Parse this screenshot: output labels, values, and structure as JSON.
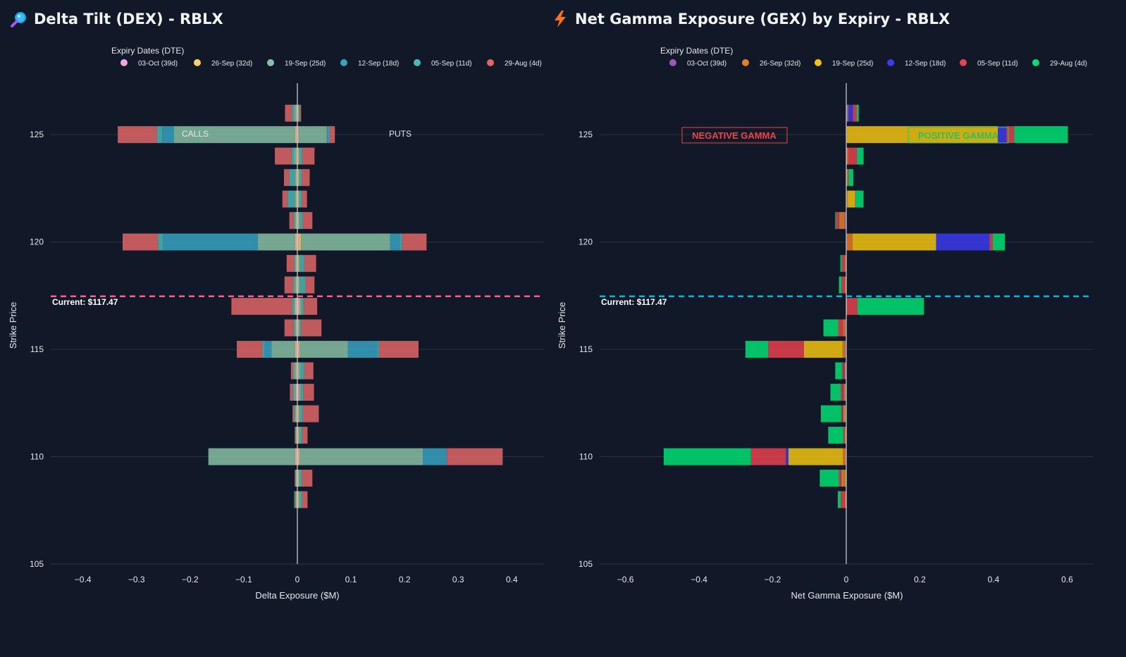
{
  "dex": {
    "title": "Delta Tilt (DEX) - RBLX",
    "legend_title": "Expiry Dates (DTE)",
    "xlabel": "Delta Exposure ($M)",
    "ylabel": "Strike Price",
    "current_label": "Current: $117.47",
    "calls_label": "CALLS",
    "puts_label": "PUTS",
    "current_line_color": "#f06292"
  },
  "gex": {
    "title": "Net Gamma Exposure (GEX) by Expiry - RBLX",
    "legend_title": "Expiry Dates (DTE)",
    "xlabel": "Net Gamma Exposure ($M)",
    "ylabel": "Strike Price",
    "current_label": "Current: $117.47",
    "negative_label": "NEGATIVE GAMMA",
    "positive_label": "POSITIVE GAMMA",
    "negative_color": "#ef4444",
    "positive_color": "#22c55e",
    "current_line_color": "#06b6d4"
  },
  "chart_data": [
    {
      "type": "bar",
      "orientation": "horizontal",
      "stacked": true,
      "title": "Delta Tilt (DEX) - RBLX",
      "xlabel": "Delta Exposure ($M)",
      "ylabel": "Strike Price",
      "xlim": [
        -0.46,
        0.46
      ],
      "ylim": [
        105,
        127.4
      ],
      "xticks": [
        -0.4,
        -0.3,
        -0.2,
        -0.1,
        0,
        0.1,
        0.2,
        0.3,
        0.4
      ],
      "xtick_labels": [
        "−0.4",
        "−0.3",
        "−0.2",
        "−0.1",
        "0",
        "0.1",
        "0.2",
        "0.3",
        "0.4"
      ],
      "yticks": [
        105,
        110,
        115,
        120,
        125
      ],
      "legend_title": "Expiry Dates (DTE)",
      "legend_position": "top",
      "current_price": 117.47,
      "expiries": [
        {
          "name": "03-Oct (39d)",
          "color": "#f5a3e8"
        },
        {
          "name": "26-Sep (32d)",
          "color": "#fdd062"
        },
        {
          "name": "19-Sep (25d)",
          "color": "#87bfa4"
        },
        {
          "name": "12-Sep (18d)",
          "color": "#37a3c2"
        },
        {
          "name": "05-Sep (11d)",
          "color": "#4ab9b9"
        },
        {
          "name": "29-Aug (4d)",
          "color": "#e06666"
        }
      ],
      "strikes": [
        108,
        109,
        110,
        111,
        112,
        113,
        114,
        115,
        116,
        117,
        118,
        119,
        120,
        121,
        122,
        123,
        124,
        125,
        126
      ],
      "calls": [
        [
          -0.001,
          -0.001,
          -0.002,
          -0.001,
          -0.001,
          -0.002,
          -0.001,
          -0.002,
          -0.001,
          -0.002,
          -0.001,
          -0.001,
          -0.002,
          -0.001,
          -0.001,
          -0.001,
          -0.001,
          -0.002,
          -0.001
        ],
        [
          -0.001,
          -0.001,
          -0.002,
          -0.001,
          -0.001,
          -0.001,
          -0.001,
          -0.002,
          -0.001,
          -0.002,
          -0.001,
          -0.001,
          -0.002,
          -0.001,
          -0.001,
          -0.001,
          -0.001,
          -0.002,
          -0.001
        ],
        [
          -0.001,
          -0.001,
          -0.162,
          -0.001,
          -0.002,
          -0.003,
          -0.004,
          -0.044,
          -0.002,
          -0.002,
          -0.003,
          -0.002,
          -0.07,
          -0.002,
          -0.003,
          -0.002,
          -0.005,
          -0.226,
          -0.004
        ],
        [
          0,
          0,
          0,
          0,
          0,
          0,
          0,
          -0.013,
          0,
          0,
          0,
          0,
          -0.177,
          0,
          0,
          0,
          0,
          -0.022,
          0
        ],
        [
          -0.002,
          -0.001,
          0,
          -0.001,
          -0.002,
          -0.003,
          -0.002,
          -0.004,
          -0.003,
          -0.004,
          -0.003,
          -0.002,
          -0.009,
          -0.003,
          -0.013,
          -0.011,
          -0.004,
          -0.01,
          -0.004
        ],
        [
          -0.001,
          -0.001,
          0,
          -0.001,
          -0.003,
          -0.005,
          -0.004,
          -0.048,
          -0.017,
          -0.113,
          -0.016,
          -0.014,
          -0.066,
          -0.008,
          -0.01,
          -0.01,
          -0.031,
          -0.073,
          -0.013
        ]
      ],
      "puts": [
        [
          0.001,
          0.001,
          0.002,
          0.001,
          0.001,
          0.002,
          0.001,
          0.002,
          0.001,
          0.002,
          0.001,
          0.001,
          0.002,
          0.001,
          0.001,
          0.001,
          0.001,
          0.001,
          0.001
        ],
        [
          0.001,
          0.001,
          0.002,
          0.001,
          0.001,
          0.001,
          0.001,
          0.002,
          0.001,
          0.002,
          0.001,
          0.001,
          0.005,
          0.001,
          0.001,
          0.001,
          0.001,
          0.001,
          0.001
        ],
        [
          0.003,
          0.002,
          0.23,
          0.002,
          0.003,
          0.004,
          0.004,
          0.09,
          0.002,
          0.004,
          0.003,
          0.003,
          0.166,
          0.003,
          0.002,
          0.003,
          0.003,
          0.053,
          0.001
        ],
        [
          0,
          0,
          0.045,
          0,
          0,
          0,
          0,
          0.055,
          0,
          0,
          0,
          0,
          0.018,
          0,
          0,
          0,
          0,
          0.002,
          0
        ],
        [
          0.004,
          0.004,
          0,
          0.005,
          0.005,
          0.004,
          0.007,
          0.003,
          0.003,
          0.004,
          0.01,
          0.008,
          0.004,
          0.005,
          0.004,
          0.003,
          0.004,
          0.003,
          0.002
        ],
        [
          0.01,
          0.02,
          0.104,
          0.01,
          0.03,
          0.02,
          0.017,
          0.074,
          0.038,
          0.025,
          0.017,
          0.022,
          0.046,
          0.018,
          0.01,
          0.015,
          0.023,
          0.01,
          0.002
        ]
      ]
    },
    {
      "type": "bar",
      "orientation": "horizontal",
      "stacked": true,
      "title": "Net Gamma Exposure (GEX) by Expiry - RBLX",
      "xlabel": "Net Gamma Exposure ($M)",
      "ylabel": "Strike Price",
      "xlim": [
        -0.67,
        0.67
      ],
      "ylim": [
        105,
        127.4
      ],
      "xticks": [
        -0.6,
        -0.4,
        -0.2,
        0,
        0.2,
        0.4,
        0.6
      ],
      "xtick_labels": [
        "−0.6",
        "−0.4",
        "−0.2",
        "0",
        "0.2",
        "0.4",
        "0.6"
      ],
      "yticks": [
        105,
        110,
        115,
        120,
        125
      ],
      "legend_title": "Expiry Dates (DTE)",
      "legend_position": "top",
      "current_price": 117.47,
      "expiries": [
        {
          "name": "03-Oct (39d)",
          "color": "#9b59b6"
        },
        {
          "name": "26-Sep (32d)",
          "color": "#e67e22"
        },
        {
          "name": "19-Sep (25d)",
          "color": "#f1c40f"
        },
        {
          "name": "12-Sep (18d)",
          "color": "#3b3bf0"
        },
        {
          "name": "05-Sep (11d)",
          "color": "#e8414f"
        },
        {
          "name": "29-Aug (4d)",
          "color": "#00e074"
        }
      ],
      "strikes": [
        108,
        109,
        110,
        111,
        112,
        113,
        114,
        115,
        116,
        117,
        118,
        119,
        120,
        121,
        122,
        123,
        124,
        125,
        126
      ],
      "values": [
        [
          -0.001,
          -0.001,
          -0.002,
          -0.001,
          -0.002,
          -0.002,
          -0.002,
          -0.003,
          -0.003,
          0.001,
          -0.001,
          -0.001,
          0.002,
          -0.004,
          0.001,
          0.001,
          0.001,
          0.001,
          0.003
        ],
        [
          -0.002,
          -0.009,
          -0.007,
          -0.003,
          -0.003,
          -0.004,
          -0.003,
          -0.007,
          -0.006,
          0.001,
          -0.002,
          -0.002,
          0.015,
          -0.014,
          0.003,
          0.001,
          0.003,
          0.001,
          0.001
        ],
        [
          0,
          -0.003,
          -0.148,
          0,
          -0.003,
          -0.001,
          0,
          -0.105,
          0,
          0,
          0,
          0,
          0.227,
          -0.001,
          0.02,
          0.001,
          0.001,
          0.41,
          0.001
        ],
        [
          0,
          -0.001,
          -0.007,
          0,
          -0.002,
          -0.002,
          -0.002,
          0,
          0,
          0,
          0,
          0,
          0.145,
          -0.001,
          0,
          0,
          0,
          0.023,
          0.013
        ],
        [
          -0.012,
          -0.006,
          -0.095,
          -0.004,
          -0.004,
          -0.006,
          -0.005,
          -0.097,
          -0.013,
          0.028,
          -0.01,
          -0.009,
          0.009,
          -0.008,
          0.001,
          0.003,
          0.024,
          0.021,
          0.01
        ],
        [
          -0.008,
          -0.052,
          -0.237,
          -0.041,
          -0.055,
          -0.028,
          -0.018,
          -0.062,
          -0.04,
          0.181,
          -0.007,
          -0.004,
          0.033,
          -0.002,
          0.022,
          0.013,
          0.018,
          0.146,
          0.006
        ]
      ]
    }
  ]
}
